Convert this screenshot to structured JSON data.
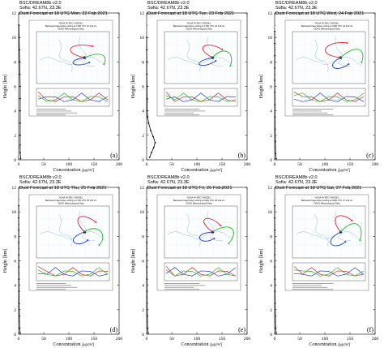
{
  "figure": {
    "panels": [
      {
        "id": "a",
        "label": "(a)",
        "model": "BSC/DREAM8b v2.0",
        "site": "Sofia: 42.67N, 23.3E",
        "forecast": "Dust Forecast at 18 UTC Mon, 22 Feb 2021",
        "inset_title": "NOAA HYSPLIT MODEL",
        "inset_subtitle": "Backward trajectories ending at 1700 UTC 22 Feb 21",
        "inset_data": "GDAS Meteorological Data",
        "profile_type": "spike"
      },
      {
        "id": "b",
        "label": "(b)",
        "model": "BSC/DREAM8b v2.0",
        "site": "Sofia: 42.67N, 23.3E",
        "forecast": "Dust Forecast at 18 UTC Tue, 23 Feb 2021",
        "inset_title": "NOAA HYSPLIT MODEL",
        "inset_subtitle": "Backward trajectories ending at 1700 UTC 23 Feb 21",
        "inset_data": "GDAS Meteorological Data",
        "profile_type": "hump"
      },
      {
        "id": "c",
        "label": "(c)",
        "model": "BSC/DREAM8b v2.0",
        "site": "Sofia: 42.67N, 23.3E",
        "forecast": "Dust Forecast at 18 UTC Wed, 24 Feb 2021",
        "inset_title": "NOAA HYSPLIT MODEL",
        "inset_subtitle": "Backward trajectories ending at 1600 UTC 24 Feb 21",
        "inset_data": "GDAS Meteorological Data",
        "profile_type": "small"
      },
      {
        "id": "d",
        "label": "(d)",
        "model": "BSC/DREAM8b v2.0",
        "site": "Sofia: 42.67N, 23.3E",
        "forecast": "Dust Forecast at 18 UTC Thu, 25 Feb 2021",
        "inset_title": "NOAA HYSPLIT MODEL",
        "inset_subtitle": "Backward trajectories ending at 1700 UTC 25 Feb 21",
        "inset_data": "GDAS Meteorological Data",
        "profile_type": "small"
      },
      {
        "id": "e",
        "label": "(e)",
        "model": "BSC/DREAM8b v2.0",
        "site": "Sofia: 42.67N, 23.3E",
        "forecast": "Dust Forecast at 18 UTC Fri, 26 Feb 2021",
        "inset_title": "NOAA HYSPLIT MODEL",
        "inset_subtitle": "Backward trajectories ending at 1600 UTC 26 Feb 21",
        "inset_data": "GDAS Meteorological Data",
        "profile_type": "small"
      },
      {
        "id": "f",
        "label": "(f)",
        "model": "BSC/DREAM8b v2.0",
        "site": "Sofia: 42.67N, 23.3E",
        "forecast": "Dust Forecast at 18 UTC Sat, 27 Feb 2021",
        "inset_title": "NOAA HYSPLIT MODEL",
        "inset_subtitle": "Backward trajectories ending at 1800 UTC 27 Feb 21",
        "inset_data": "GDAS Meteorological Data",
        "profile_type": "small"
      }
    ],
    "colors": {
      "trajectory_red": "#e8212a",
      "trajectory_blue": "#1f3fd0",
      "trajectory_green": "#18c020",
      "profile": "#000000",
      "map_water": "#ffffff",
      "map_land_line": "#7fb2cf"
    }
  },
  "chart_data": {
    "type": "line",
    "xlabel_parts": {
      "text": "Concentration",
      "unit": "[μg/m³]"
    },
    "ylabel": "Height [km]",
    "xlim": [
      0,
      200
    ],
    "ylim": [
      0,
      12
    ],
    "xticks": [
      "0",
      "50",
      "100",
      "150",
      "200"
    ],
    "yticks": [
      "0",
      "2",
      "4",
      "6",
      "8",
      "10",
      "12"
    ],
    "series": [
      {
        "panel": "a",
        "points": [
          [
            4,
            0.1
          ],
          [
            3,
            0.6
          ],
          [
            3,
            1.2
          ],
          [
            3,
            2
          ],
          [
            3,
            3
          ],
          [
            3,
            4
          ],
          [
            3,
            5
          ],
          [
            3,
            6
          ],
          [
            2.5,
            7
          ],
          [
            2,
            8
          ],
          [
            1.5,
            9
          ],
          [
            1,
            10
          ],
          [
            0.5,
            11
          ]
        ]
      },
      {
        "panel": "b",
        "points": [
          [
            6,
            0.2
          ],
          [
            10,
            0.6
          ],
          [
            14,
            1.0
          ],
          [
            17,
            1.4
          ],
          [
            13,
            1.9
          ],
          [
            8,
            2.4
          ],
          [
            4,
            3
          ],
          [
            2,
            3.5
          ],
          [
            1,
            4
          ],
          [
            1,
            5
          ],
          [
            0.6,
            6
          ],
          [
            0.4,
            7
          ],
          [
            0.3,
            8
          ],
          [
            0.2,
            9
          ],
          [
            0.1,
            10
          ]
        ]
      },
      {
        "panel": "c",
        "points": [
          [
            3,
            0.1
          ],
          [
            2,
            0.5
          ],
          [
            1.5,
            1.5
          ],
          [
            1,
            2.5
          ],
          [
            0.8,
            3.5
          ],
          [
            0.6,
            4.5
          ],
          [
            0.5,
            5.5
          ],
          [
            0.4,
            6.5
          ],
          [
            0.3,
            7.5
          ],
          [
            0.3,
            8.5
          ],
          [
            0.2,
            9.5
          ],
          [
            0.1,
            10.5
          ]
        ]
      },
      {
        "panel": "d",
        "points": [
          [
            3,
            0.1
          ],
          [
            2,
            0.5
          ],
          [
            1.5,
            1.5
          ],
          [
            1,
            2.5
          ],
          [
            0.8,
            3.5
          ],
          [
            0.6,
            4.5
          ],
          [
            0.5,
            5.5
          ],
          [
            0.4,
            6.5
          ],
          [
            0.3,
            7.5
          ],
          [
            0.3,
            8.5
          ],
          [
            0.2,
            9.5
          ],
          [
            0.1,
            10.5
          ]
        ]
      },
      {
        "panel": "e",
        "points": [
          [
            3,
            0.1
          ],
          [
            2,
            0.5
          ],
          [
            1.5,
            1.5
          ],
          [
            1,
            2.5
          ],
          [
            0.8,
            3.5
          ],
          [
            0.6,
            4.5
          ],
          [
            0.5,
            5.5
          ],
          [
            0.4,
            6.5
          ],
          [
            0.3,
            7.5
          ],
          [
            0.3,
            8.5
          ],
          [
            0.2,
            9.5
          ],
          [
            0.1,
            10.5
          ]
        ]
      },
      {
        "panel": "f",
        "points": [
          [
            3,
            0.1
          ],
          [
            2,
            0.5
          ],
          [
            1.5,
            1.5
          ],
          [
            1,
            2.5
          ],
          [
            0.8,
            3.5
          ],
          [
            0.6,
            4.5
          ],
          [
            0.5,
            5.5
          ],
          [
            0.4,
            6.5
          ],
          [
            0.3,
            7.5
          ],
          [
            0.3,
            8.5
          ],
          [
            0.2,
            9.5
          ],
          [
            0.1,
            10.5
          ]
        ]
      }
    ]
  }
}
